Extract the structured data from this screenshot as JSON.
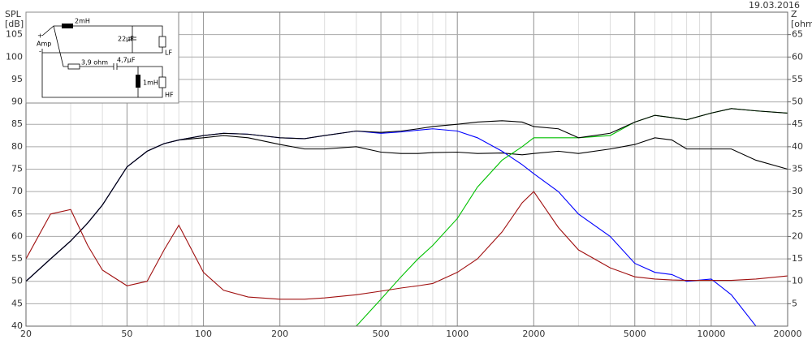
{
  "chart_data": {
    "type": "line",
    "date": "19.03.2016",
    "y_label": [
      "SPL",
      "[dB]"
    ],
    "y2_label": [
      "Z",
      "[ohm]"
    ],
    "x": [
      20,
      25,
      30,
      35,
      40,
      50,
      60,
      70,
      80,
      100,
      120,
      150,
      200,
      250,
      300,
      400,
      500,
      600,
      700,
      800,
      1000,
      1200,
      1500,
      1800,
      2000,
      2500,
      3000,
      4000,
      5000,
      6000,
      7000,
      8000,
      10000,
      12000,
      15000,
      20000
    ],
    "xlim": [
      20,
      20000
    ],
    "xticks": [
      20,
      50,
      100,
      200,
      500,
      1000,
      2000,
      5000,
      10000,
      20000
    ],
    "log_x": true,
    "ylim": [
      40,
      110
    ],
    "yticks": [
      40,
      45,
      50,
      55,
      60,
      65,
      70,
      75,
      80,
      85,
      90,
      95,
      100,
      105
    ],
    "y2lim": [
      0,
      70
    ],
    "y2ticks": [
      5,
      10,
      15,
      20,
      25,
      30,
      35,
      40,
      45,
      50,
      55,
      60,
      65
    ],
    "grid": true,
    "series": [
      {
        "color": "#000000",
        "values": [
          50,
          55,
          59,
          63,
          67,
          75.5,
          79,
          80.7,
          81.5,
          82,
          82.5,
          82,
          80.5,
          79.5,
          79.5,
          80,
          78.8,
          78.5,
          78.5,
          78.7,
          78.8,
          78.5,
          78.6,
          78.2,
          78.5,
          79,
          78.5,
          79.5,
          80.5,
          82,
          81.5,
          79.5,
          79.5,
          79.5,
          77,
          75
        ]
      },
      {
        "color": "#0000ff",
        "values": [
          50,
          55,
          59,
          63,
          67,
          75.5,
          79,
          80.7,
          81.5,
          82.5,
          83,
          82.8,
          82,
          81.8,
          82.5,
          83.5,
          83,
          83.3,
          83.7,
          84,
          83.5,
          82,
          79,
          76,
          74,
          70,
          65,
          60,
          54,
          52,
          51.5,
          50,
          50.5,
          47,
          40,
          40
        ]
      },
      {
        "color": "#00c000",
        "values": [
          40,
          40,
          40,
          40,
          40,
          40,
          40,
          40,
          40,
          40,
          40,
          40,
          40,
          40,
          40,
          40,
          46,
          51,
          55,
          58,
          64,
          71,
          77,
          80,
          82,
          82,
          82,
          82.5,
          85.5,
          87,
          86.5,
          86,
          87.5,
          88.5,
          88,
          87.5
        ]
      },
      {
        "color": "#000000",
        "values": [
          50,
          55,
          59,
          63,
          67,
          75.5,
          79,
          80.7,
          81.5,
          82.5,
          83,
          82.8,
          82,
          81.8,
          82.5,
          83.5,
          83.2,
          83.5,
          84,
          84.5,
          85,
          85.5,
          85.8,
          85.5,
          84.5,
          84,
          82,
          83,
          85.5,
          87,
          86.5,
          86,
          87.5,
          88.5,
          88,
          87.5
        ]
      },
      {
        "color": "#a01010",
        "axis": "y2",
        "values": [
          15,
          25,
          26,
          18,
          12.5,
          9,
          10,
          17,
          22.5,
          12,
          8,
          6.5,
          6,
          6,
          6.3,
          7,
          7.8,
          8.5,
          9,
          9.5,
          12,
          15,
          21,
          27.5,
          30,
          22,
          17,
          13,
          11,
          10.5,
          10.3,
          10.2,
          10.2,
          10.2,
          10.5,
          11.2
        ]
      }
    ]
  },
  "inset": {
    "l1": "2mH",
    "c1": "22µF",
    "lf": "LF",
    "plus": "+",
    "amp": "Amp",
    "minus": "-",
    "r": "3,9 ohm",
    "c2": "4,7µF",
    "l2": "1mH",
    "hf": "HF"
  }
}
